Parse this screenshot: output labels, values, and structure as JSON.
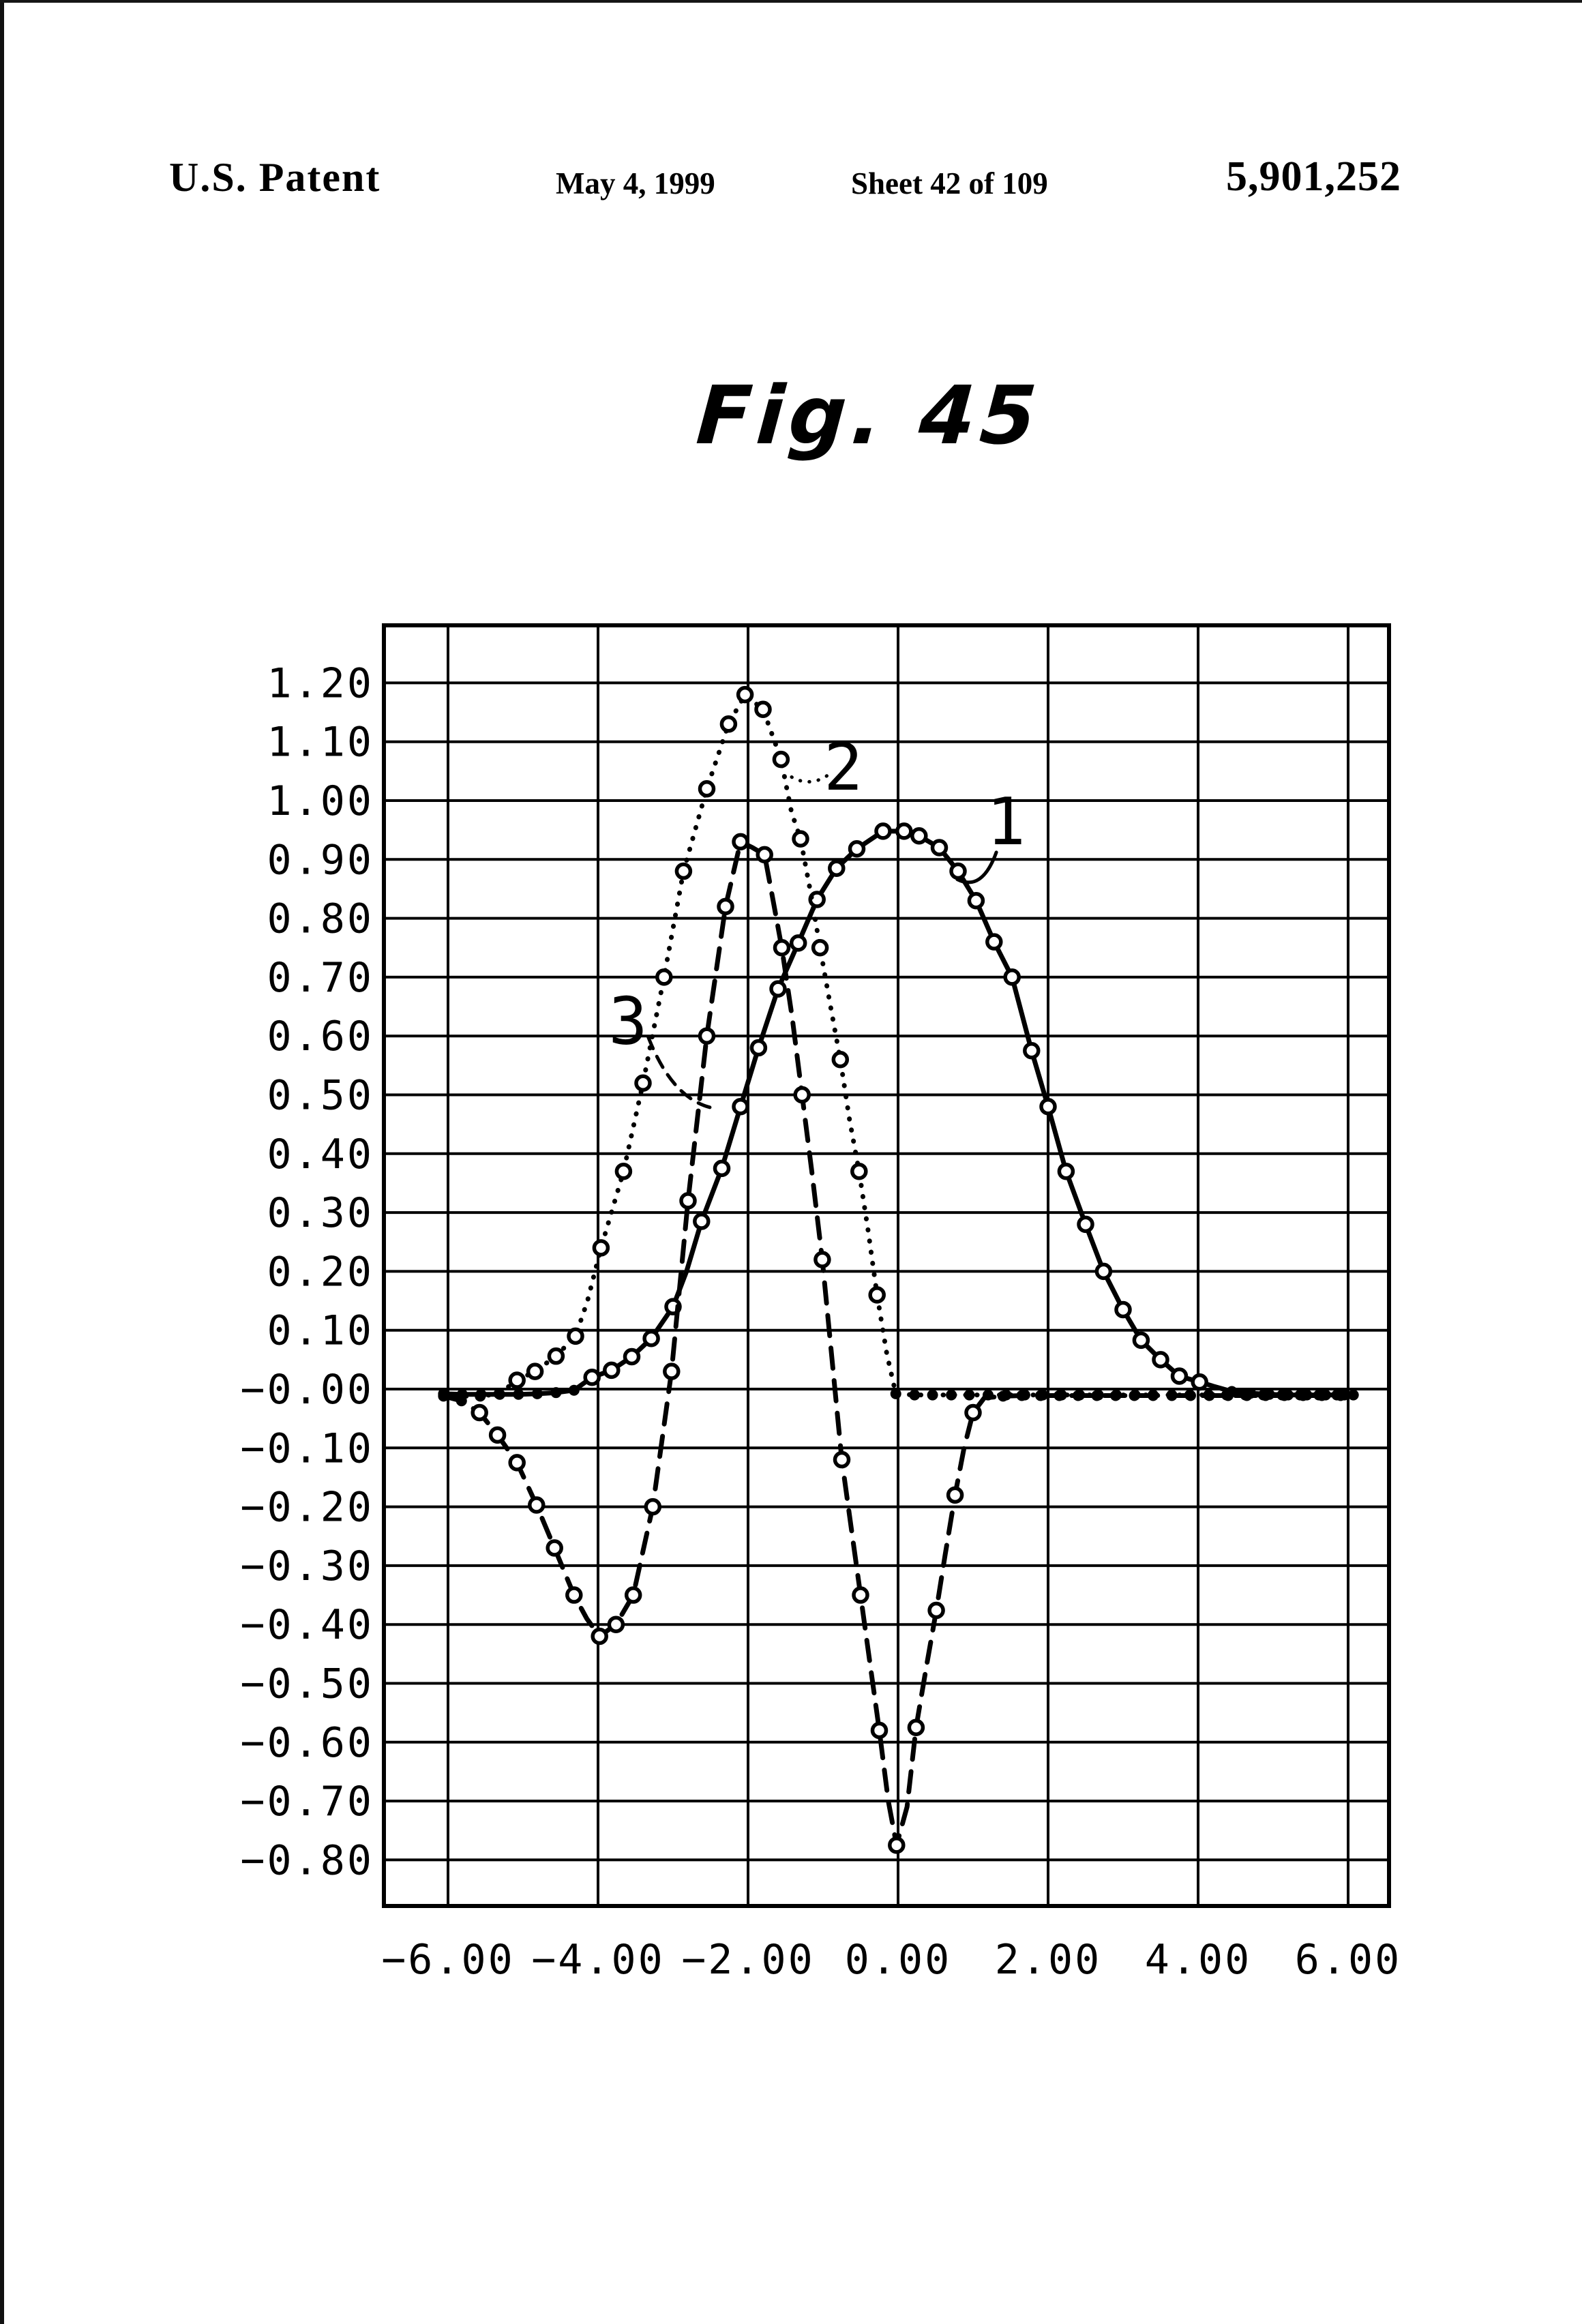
{
  "header": {
    "publisher": "U.S. Patent",
    "date": "May 4, 1999",
    "sheet": "Sheet 42 of 109",
    "patent_number": "5,901,252"
  },
  "figure": {
    "title": "Fig. 45"
  },
  "chart_data": {
    "type": "line",
    "title": "Fig. 45",
    "xlabel": "",
    "ylabel": "",
    "grid": true,
    "xlim": [
      -6.86,
      6.55
    ],
    "ylim": [
      -0.878,
      1.298
    ],
    "x_ticks": [
      {
        "v": -6,
        "label": "−6.00"
      },
      {
        "v": -4,
        "label": "−4.00"
      },
      {
        "v": -2,
        "label": "−2.00"
      },
      {
        "v": 0,
        "label": "0.00"
      },
      {
        "v": 2,
        "label": "2.00"
      },
      {
        "v": 4,
        "label": "4.00"
      },
      {
        "v": 6,
        "label": "6.00"
      }
    ],
    "y_ticks": [
      {
        "v": 1.2,
        "label": "1.20"
      },
      {
        "v": 1.1,
        "label": "1.10"
      },
      {
        "v": 1.0,
        "label": "1.00"
      },
      {
        "v": 0.9,
        "label": "0.90"
      },
      {
        "v": 0.8,
        "label": "0.80"
      },
      {
        "v": 0.7,
        "label": "0.70"
      },
      {
        "v": 0.6,
        "label": "0.60"
      },
      {
        "v": 0.5,
        "label": "0.50"
      },
      {
        "v": 0.4,
        "label": "0.40"
      },
      {
        "v": 0.3,
        "label": "0.30"
      },
      {
        "v": 0.2,
        "label": "0.20"
      },
      {
        "v": 0.1,
        "label": "0.10"
      },
      {
        "v": 0.0,
        "label": "−0.00"
      },
      {
        "v": -0.1,
        "label": "−0.10"
      },
      {
        "v": -0.2,
        "label": "−0.20"
      },
      {
        "v": -0.3,
        "label": "−0.30"
      },
      {
        "v": -0.4,
        "label": "−0.40"
      },
      {
        "v": -0.5,
        "label": "−0.50"
      },
      {
        "v": -0.6,
        "label": "−0.60"
      },
      {
        "v": -0.7,
        "label": "−0.70"
      },
      {
        "v": -0.8,
        "label": "−0.80"
      }
    ],
    "series": [
      {
        "name": "1",
        "style": "solid",
        "points": [
          [
            -6.06,
            -0.008
          ],
          [
            -5.81,
            -0.009
          ],
          [
            -5.56,
            -0.009
          ],
          [
            -5.31,
            -0.009
          ],
          [
            -5.06,
            -0.009
          ],
          [
            -4.81,
            -0.008
          ],
          [
            -4.56,
            -0.006
          ],
          [
            -4.32,
            -0.002
          ],
          [
            -4.08,
            0.02
          ],
          [
            -3.82,
            0.032
          ],
          [
            -3.55,
            0.055
          ],
          [
            -3.29,
            0.086
          ],
          [
            -3.0,
            0.14
          ],
          [
            -2.82,
            0.2
          ],
          [
            -2.62,
            0.285
          ],
          [
            -2.35,
            0.375
          ],
          [
            -2.1,
            0.48
          ],
          [
            -1.86,
            0.58
          ],
          [
            -1.6,
            0.68
          ],
          [
            -1.33,
            0.758
          ],
          [
            -1.08,
            0.832
          ],
          [
            -0.82,
            0.885
          ],
          [
            -0.55,
            0.918
          ],
          [
            -0.2,
            0.948
          ],
          [
            0.08,
            0.948
          ],
          [
            0.28,
            0.94
          ],
          [
            0.55,
            0.92
          ],
          [
            0.8,
            0.88
          ],
          [
            1.04,
            0.83
          ],
          [
            1.28,
            0.76
          ],
          [
            1.52,
            0.7
          ],
          [
            1.78,
            0.575
          ],
          [
            2.0,
            0.48
          ],
          [
            2.24,
            0.37
          ],
          [
            2.5,
            0.28
          ],
          [
            2.74,
            0.2
          ],
          [
            3.0,
            0.135
          ],
          [
            3.24,
            0.083
          ],
          [
            3.5,
            0.05
          ],
          [
            3.75,
            0.022
          ],
          [
            4.02,
            0.012
          ],
          [
            4.2,
            0.005
          ],
          [
            4.45,
            -0.004
          ],
          [
            4.7,
            -0.007
          ],
          [
            4.95,
            -0.009
          ],
          [
            5.2,
            -0.01
          ],
          [
            5.45,
            -0.01
          ],
          [
            5.7,
            -0.01
          ],
          [
            5.95,
            -0.01
          ],
          [
            6.07,
            -0.01
          ]
        ]
      },
      {
        "name": "2",
        "style": "dotted",
        "points": [
          [
            -6.06,
            -0.01
          ],
          [
            -5.82,
            -0.012
          ],
          [
            -5.57,
            -0.012
          ],
          [
            -5.32,
            -0.008
          ],
          [
            -5.08,
            0.015
          ],
          [
            -4.84,
            0.03
          ],
          [
            -4.56,
            0.056
          ],
          [
            -4.3,
            0.09
          ],
          [
            -4.14,
            0.15
          ],
          [
            -3.96,
            0.24
          ],
          [
            -3.66,
            0.37
          ],
          [
            -3.4,
            0.52
          ],
          [
            -3.12,
            0.7
          ],
          [
            -2.86,
            0.88
          ],
          [
            -2.55,
            1.02
          ],
          [
            -2.26,
            1.13
          ],
          [
            -2.04,
            1.18
          ],
          [
            -1.8,
            1.155
          ],
          [
            -1.56,
            1.07
          ],
          [
            -1.42,
            0.98
          ],
          [
            -1.3,
            0.935
          ],
          [
            -1.16,
            0.84
          ],
          [
            -1.04,
            0.75
          ],
          [
            -0.9,
            0.65
          ],
          [
            -0.77,
            0.56
          ],
          [
            -0.65,
            0.46
          ],
          [
            -0.52,
            0.37
          ],
          [
            -0.4,
            0.27
          ],
          [
            -0.28,
            0.16
          ],
          [
            -0.15,
            0.06
          ],
          [
            -0.03,
            -0.008
          ],
          [
            0.22,
            -0.01
          ],
          [
            0.46,
            -0.01
          ],
          [
            0.71,
            -0.01
          ],
          [
            0.95,
            -0.01
          ],
          [
            1.2,
            -0.01
          ],
          [
            1.44,
            -0.01
          ],
          [
            1.69,
            -0.01
          ],
          [
            1.93,
            -0.01
          ],
          [
            2.18,
            -0.01
          ],
          [
            2.42,
            -0.01
          ],
          [
            2.67,
            -0.01
          ],
          [
            2.91,
            -0.01
          ],
          [
            3.16,
            -0.01
          ],
          [
            3.4,
            -0.01
          ],
          [
            3.65,
            -0.01
          ],
          [
            3.89,
            -0.01
          ],
          [
            4.14,
            -0.01
          ],
          [
            4.38,
            -0.01
          ],
          [
            4.63,
            -0.01
          ],
          [
            4.87,
            -0.01
          ],
          [
            5.12,
            -0.01
          ],
          [
            5.36,
            -0.01
          ],
          [
            5.61,
            -0.01
          ],
          [
            5.85,
            -0.01
          ],
          [
            6.07,
            -0.01
          ]
        ]
      },
      {
        "name": "3",
        "style": "dashed",
        "points": [
          [
            -6.06,
            -0.012
          ],
          [
            -5.82,
            -0.02
          ],
          [
            -5.58,
            -0.04
          ],
          [
            -5.34,
            -0.078
          ],
          [
            -5.08,
            -0.125
          ],
          [
            -4.82,
            -0.197
          ],
          [
            -4.58,
            -0.27
          ],
          [
            -4.32,
            -0.35
          ],
          [
            -4.15,
            -0.39
          ],
          [
            -3.98,
            -0.42
          ],
          [
            -3.76,
            -0.4
          ],
          [
            -3.53,
            -0.35
          ],
          [
            -3.27,
            -0.2
          ],
          [
            -3.02,
            0.03
          ],
          [
            -2.8,
            0.32
          ],
          [
            -2.55,
            0.6
          ],
          [
            -2.3,
            0.82
          ],
          [
            -2.1,
            0.93
          ],
          [
            -1.94,
            0.92
          ],
          [
            -1.78,
            0.908
          ],
          [
            -1.68,
            0.84
          ],
          [
            -1.55,
            0.75
          ],
          [
            -1.41,
            0.63
          ],
          [
            -1.28,
            0.5
          ],
          [
            -1.15,
            0.37
          ],
          [
            -1.01,
            0.22
          ],
          [
            -0.88,
            0.05
          ],
          [
            -0.75,
            -0.12
          ],
          [
            -0.62,
            -0.24
          ],
          [
            -0.5,
            -0.35
          ],
          [
            -0.37,
            -0.47
          ],
          [
            -0.25,
            -0.58
          ],
          [
            -0.13,
            -0.7
          ],
          [
            -0.02,
            -0.775
          ],
          [
            0.12,
            -0.71
          ],
          [
            0.24,
            -0.575
          ],
          [
            0.38,
            -0.47
          ],
          [
            0.51,
            -0.376
          ],
          [
            0.63,
            -0.28
          ],
          [
            0.76,
            -0.18
          ],
          [
            0.88,
            -0.1
          ],
          [
            1.0,
            -0.04
          ],
          [
            1.15,
            -0.015
          ],
          [
            1.4,
            -0.012
          ],
          [
            1.65,
            -0.011
          ],
          [
            1.9,
            -0.011
          ],
          [
            2.15,
            -0.011
          ],
          [
            2.4,
            -0.011
          ],
          [
            2.65,
            -0.011
          ],
          [
            2.9,
            -0.011
          ],
          [
            3.15,
            -0.011
          ],
          [
            3.4,
            -0.011
          ],
          [
            3.65,
            -0.011
          ],
          [
            3.9,
            -0.011
          ],
          [
            4.15,
            -0.011
          ],
          [
            4.4,
            -0.011
          ],
          [
            4.65,
            -0.011
          ],
          [
            4.9,
            -0.011
          ],
          [
            5.15,
            -0.011
          ],
          [
            5.4,
            -0.011
          ],
          [
            5.65,
            -0.011
          ],
          [
            5.9,
            -0.011
          ],
          [
            6.07,
            -0.011
          ]
        ]
      }
    ],
    "annotations": [
      {
        "text": "1",
        "tx": 1.44,
        "ty": 0.964,
        "x1": 1.31,
        "y1": 0.912,
        "cx": 1.12,
        "cy": 0.845,
        "x2": 0.79,
        "y2": 0.866,
        "style": "solid"
      },
      {
        "text": "2",
        "tx": -0.73,
        "ty": 1.057,
        "x1": -0.95,
        "y1": 1.042,
        "cx": -1.22,
        "cy": 1.02,
        "x2": -1.49,
        "y2": 1.046,
        "style": "dotted"
      },
      {
        "text": "3",
        "tx": -3.6,
        "ty": 0.625,
        "x1": -3.33,
        "y1": 0.598,
        "cx": -3.0,
        "cy": 0.49,
        "x2": -2.45,
        "y2": 0.477,
        "style": "dashed"
      }
    ]
  }
}
